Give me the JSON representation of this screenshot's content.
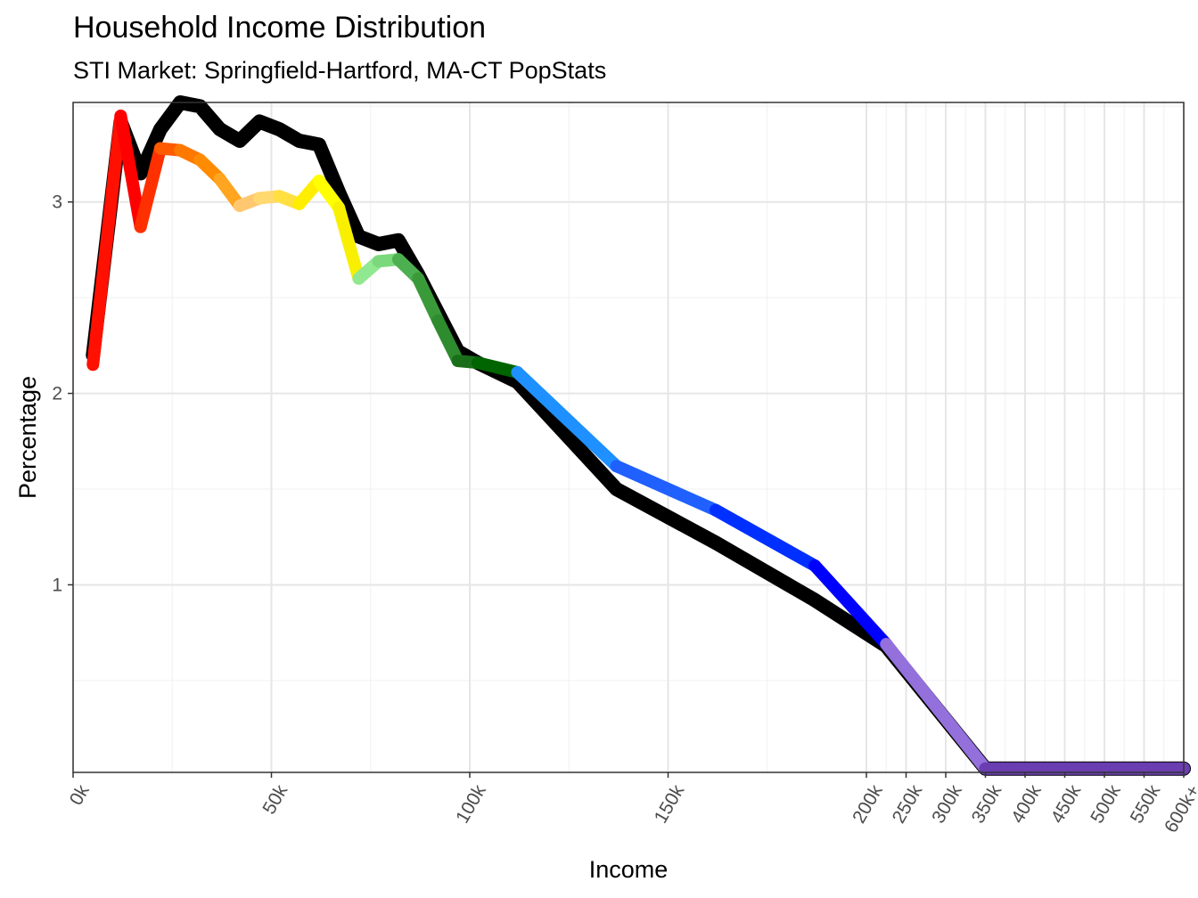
{
  "chart_data": {
    "type": "line",
    "title": "Household Income Distribution",
    "subtitle": "STI Market: Springfield-Hartford, MA-CT PopStats",
    "xlabel": "Income",
    "ylabel": "Percentage",
    "ylim": [
      0.02,
      3.52
    ],
    "grid": true,
    "x_ticks": [
      {
        "label": "0k",
        "value": 0
      },
      {
        "label": "50k",
        "value": 50
      },
      {
        "label": "100k",
        "value": 100
      },
      {
        "label": "150k",
        "value": 150
      },
      {
        "label": "200k",
        "value": 200
      },
      {
        "label": "250k",
        "value": 210
      },
      {
        "label": "300k",
        "value": 220
      },
      {
        "label": "350k",
        "value": 230
      },
      {
        "label": "400k",
        "value": 240
      },
      {
        "label": "450k",
        "value": 250
      },
      {
        "label": "500k",
        "value": 260
      },
      {
        "label": "550k",
        "value": 270
      },
      {
        "label": "600k+",
        "value": 280
      }
    ],
    "y_ticks": [
      1,
      2,
      3
    ],
    "series": [
      {
        "color": "#000000",
        "width": 16,
        "x": [
          5,
          12,
          17,
          22,
          27,
          32,
          37,
          42,
          47,
          52,
          57,
          62,
          67,
          72,
          77,
          82,
          87,
          92,
          97,
          102,
          112,
          137,
          162,
          187,
          205,
          230,
          280
        ],
        "y": [
          2.2,
          3.42,
          3.15,
          3.38,
          3.52,
          3.5,
          3.38,
          3.32,
          3.42,
          3.38,
          3.32,
          3.3,
          3.05,
          2.82,
          2.78,
          2.8,
          2.62,
          2.42,
          2.22,
          2.16,
          2.06,
          1.5,
          1.22,
          0.92,
          0.68,
          0.04,
          0.04
        ]
      },
      {
        "color": "#ff0000",
        "width": 14,
        "x": [
          5,
          12,
          17,
          22,
          27,
          32,
          37,
          42,
          47,
          52,
          57,
          62,
          67,
          72,
          77,
          82,
          87,
          92,
          97,
          102,
          112,
          137,
          162,
          187,
          205,
          230,
          280
        ],
        "y": [
          2.15,
          3.45,
          2.87,
          3.28,
          3.27,
          3.22,
          3.12,
          2.98,
          3.02,
          3.03,
          2.99,
          3.11,
          2.97,
          2.6,
          2.69,
          2.7,
          2.6,
          2.38,
          2.17,
          2.16,
          2.11,
          1.62,
          1.39,
          1.1,
          0.69,
          0.04,
          0.04
        ],
        "segment_colors": [
          "#ff1000",
          "#ff0000",
          "#ff3000",
          "#ff5a00",
          "#ff7800",
          "#ff8c00",
          "#ffa520",
          "#ffc870",
          "#ffd870",
          "#ffe040",
          "#ffee00",
          "#ffff00",
          "#f8f000",
          "#90e890",
          "#7cd87c",
          "#4caf50",
          "#3a9a3a",
          "#2e8b2e",
          "#1a6e1a",
          "#006400",
          "#1e90ff",
          "#2060ff",
          "#0030ff",
          "#0000ff",
          "#9370db",
          "#6a3eb0"
        ]
      }
    ]
  }
}
